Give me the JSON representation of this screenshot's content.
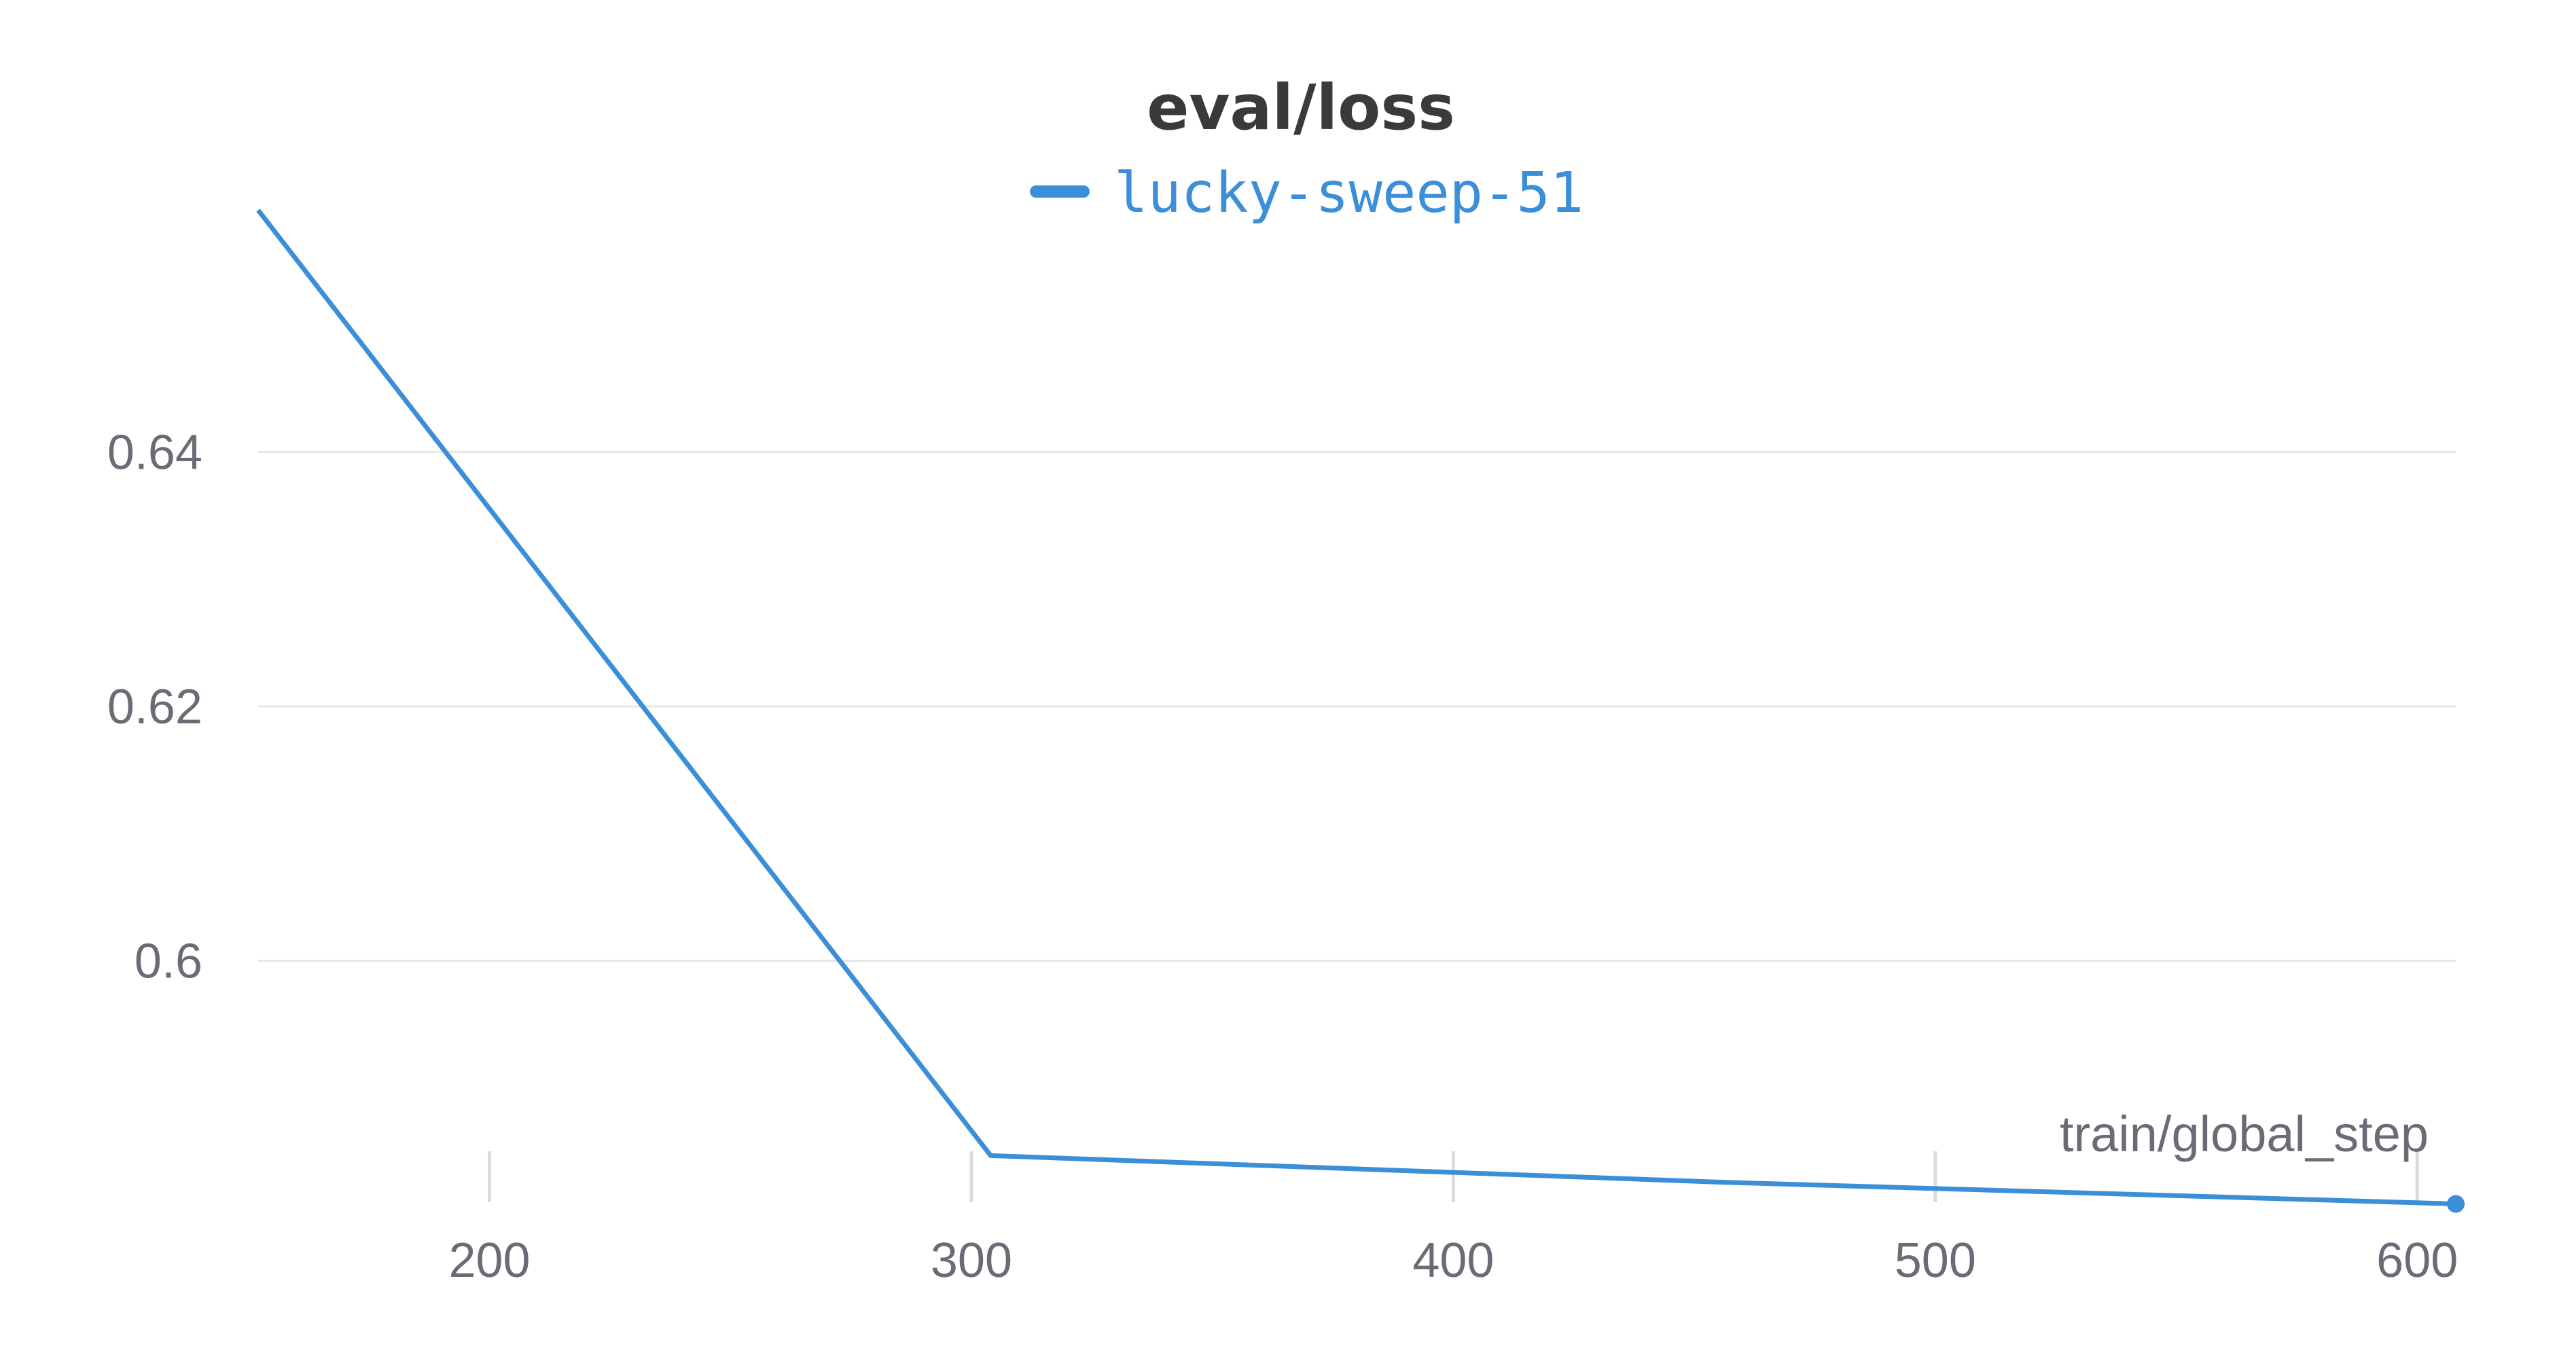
{
  "chart_data": {
    "type": "line",
    "title": "eval/loss",
    "xlabel": "train/global_step",
    "ylabel": "",
    "xlim": [
      152,
      608
    ],
    "ylim": [
      0.5805,
      0.6595
    ],
    "x_ticks": [
      200,
      300,
      400,
      500,
      600
    ],
    "y_ticks": [
      0.6,
      0.62,
      0.64
    ],
    "x_tick_labels": [
      "200",
      "300",
      "400",
      "500",
      "600"
    ],
    "y_tick_labels": [
      "0.6",
      "0.62",
      "0.64"
    ],
    "grid": "horizontal",
    "legend_position": "top-center",
    "series": [
      {
        "name": "lucky-sweep-51",
        "color": "#3b8ed8",
        "x": [
          152,
          304,
          456,
          608
        ],
        "y": [
          0.659,
          0.5847,
          0.5826,
          0.5809
        ]
      }
    ]
  }
}
